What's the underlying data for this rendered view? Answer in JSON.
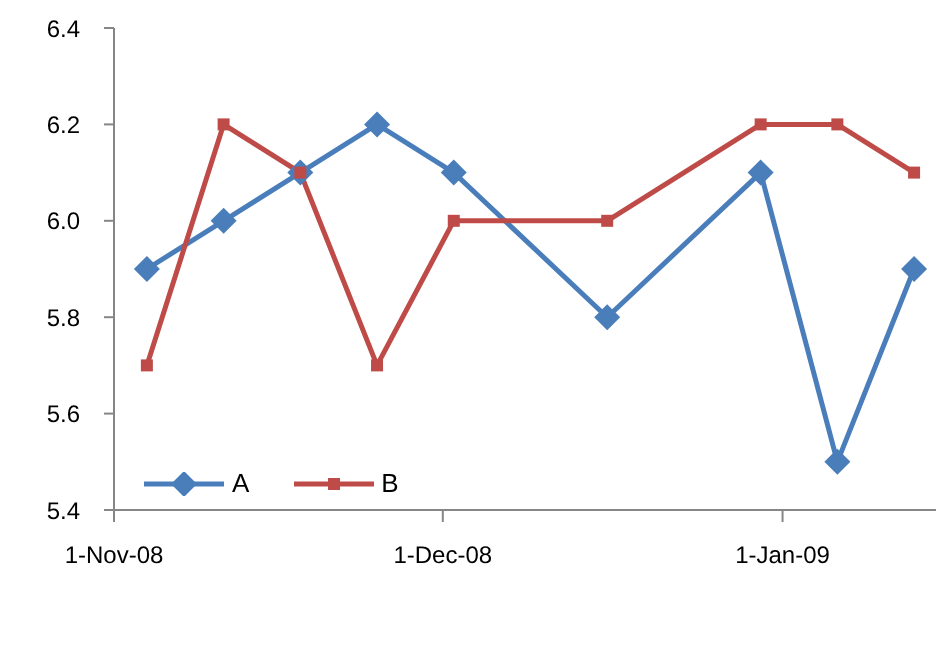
{
  "chart_data": {
    "type": "line",
    "x": [
      "2008-11-04",
      "2008-11-11",
      "2008-11-18",
      "2008-11-25",
      "2008-12-02",
      "2008-12-16",
      "2008-12-30",
      "2009-01-06",
      "2009-01-13"
    ],
    "series": [
      {
        "name": "A",
        "color": "#4a7ebb",
        "marker": "diamond",
        "values": [
          5.9,
          6.0,
          6.1,
          6.2,
          6.1,
          5.8,
          6.1,
          5.5,
          5.9
        ]
      },
      {
        "name": "B",
        "color": "#be4b48",
        "marker": "square",
        "values": [
          5.7,
          6.2,
          6.1,
          5.7,
          6.0,
          6.0,
          6.2,
          6.2,
          6.1
        ]
      }
    ],
    "xlim": [
      "2008-11-01",
      "2009-01-15"
    ],
    "xticks": [
      {
        "value": "2008-11-01",
        "label": "1-Nov-08"
      },
      {
        "value": "2008-12-01",
        "label": "1-Dec-08"
      },
      {
        "value": "2009-01-01",
        "label": "1-Jan-09"
      }
    ],
    "ylim": [
      5.4,
      6.4
    ],
    "yticks": [
      {
        "value": 5.4,
        "label": "5.4"
      },
      {
        "value": 5.6,
        "label": "5.6"
      },
      {
        "value": 5.8,
        "label": "5.8"
      },
      {
        "value": 6.0,
        "label": "6.0"
      },
      {
        "value": 6.2,
        "label": "6.2"
      },
      {
        "value": 6.4,
        "label": "6.4"
      }
    ],
    "grid": false,
    "legend": "bottom left",
    "line_style": "solid"
  }
}
